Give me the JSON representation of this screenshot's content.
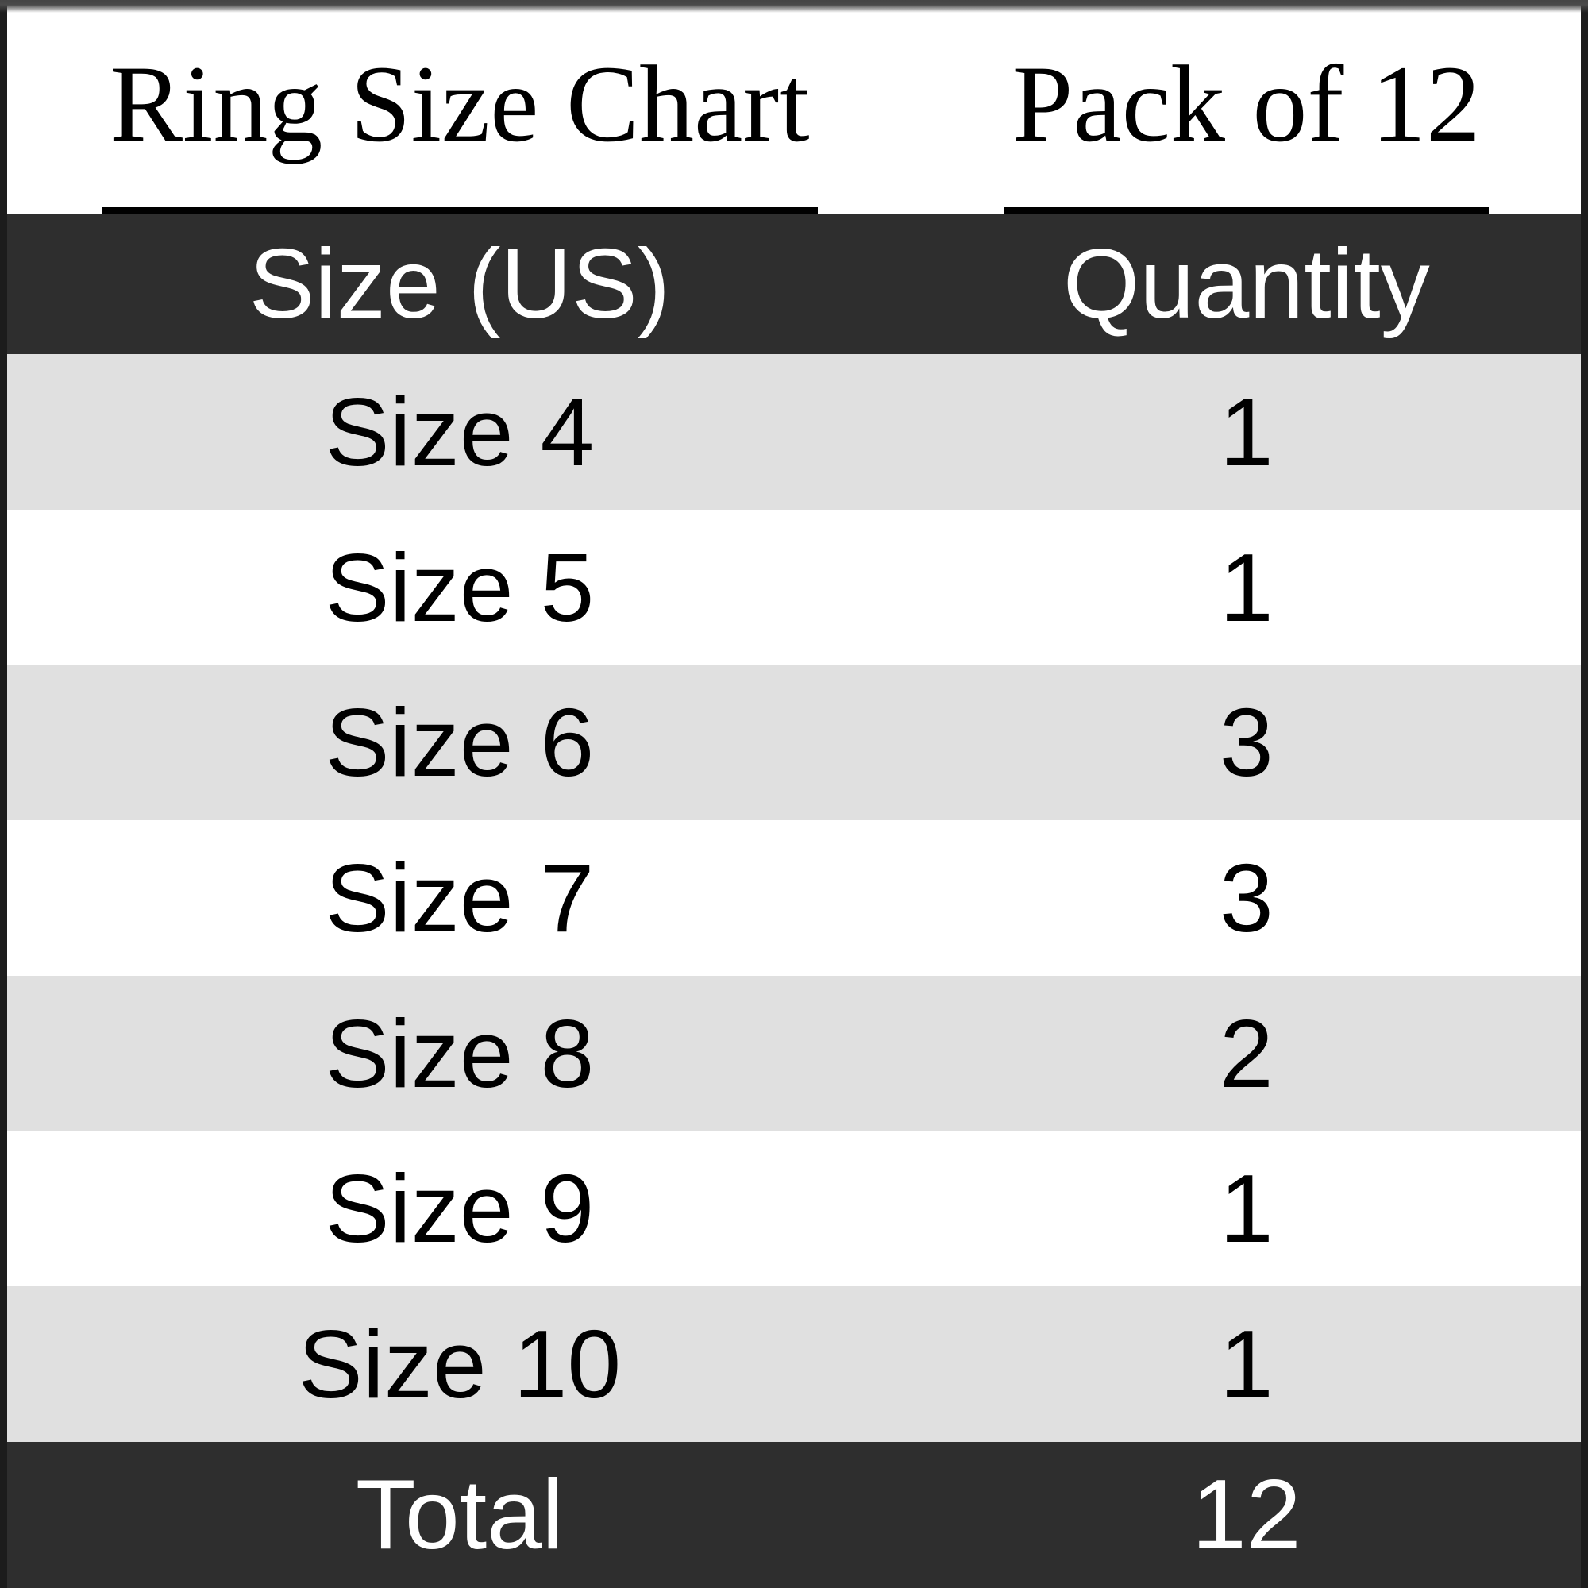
{
  "titles": {
    "left": "Ring Size Chart",
    "right": "Pack of 12"
  },
  "table": {
    "header": {
      "size": "Size (US)",
      "quantity": "Quantity"
    },
    "rows": [
      {
        "size": "Size 4",
        "quantity": "1"
      },
      {
        "size": "Size 5",
        "quantity": "1"
      },
      {
        "size": "Size 6",
        "quantity": "3"
      },
      {
        "size": "Size 7",
        "quantity": "3"
      },
      {
        "size": "Size 8",
        "quantity": "2"
      },
      {
        "size": "Size 9",
        "quantity": "1"
      },
      {
        "size": "Size 10",
        "quantity": "1"
      }
    ],
    "footer": {
      "label": "Total",
      "quantity": "12"
    }
  },
  "colors": {
    "header_bg": "#2e2e2e",
    "footer_bg": "#2e2e2e",
    "row_alt_bg": "#e0e0e0",
    "row_bg": "#ffffff",
    "frame_border": "#1c1c1c",
    "text_on_dark": "#ffffff",
    "text_on_light": "#000000"
  },
  "chart_data": {
    "type": "table",
    "title": "Ring Size Chart",
    "subtitle": "Pack of 12",
    "columns": [
      "Size (US)",
      "Quantity"
    ],
    "rows": [
      [
        "Size 4",
        1
      ],
      [
        "Size 5",
        1
      ],
      [
        "Size 6",
        3
      ],
      [
        "Size 7",
        3
      ],
      [
        "Size 8",
        2
      ],
      [
        "Size 9",
        1
      ],
      [
        "Size 10",
        1
      ]
    ],
    "total": [
      "Total",
      12
    ]
  }
}
